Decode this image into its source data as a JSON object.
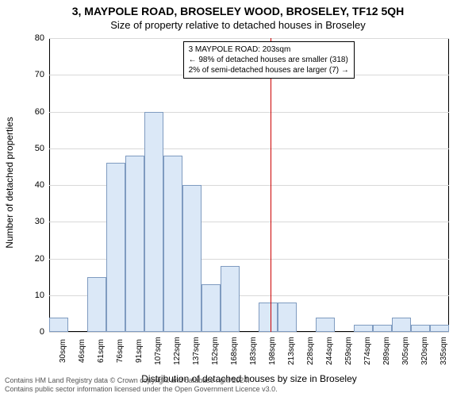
{
  "header": {
    "title": "3, MAYPOLE ROAD, BROSELEY WOOD, BROSELEY, TF12 5QH",
    "subtitle": "Size of property relative to detached houses in Broseley"
  },
  "chart": {
    "type": "histogram",
    "ylabel": "Number of detached properties",
    "xlabel": "Distribution of detached houses by size in Broseley",
    "ylim": [
      0,
      80
    ],
    "ytick_step": 10,
    "grid_color": "#d9d9d9",
    "bar_fill": "#dbe8f7",
    "bar_border": "#7f9bc0",
    "background": "#ffffff",
    "label_fontsize": 12,
    "tick_fontsize": 11,
    "x_categories": [
      "30sqm",
      "46sqm",
      "61sqm",
      "76sqm",
      "91sqm",
      "107sqm",
      "122sqm",
      "137sqm",
      "152sqm",
      "168sqm",
      "183sqm",
      "198sqm",
      "213sqm",
      "228sqm",
      "244sqm",
      "259sqm",
      "274sqm",
      "289sqm",
      "305sqm",
      "320sqm",
      "335sqm"
    ],
    "values": [
      4,
      0,
      15,
      46,
      48,
      60,
      48,
      40,
      13,
      18,
      0,
      8,
      8,
      0,
      4,
      0,
      2,
      2,
      4,
      2,
      2
    ],
    "marker": {
      "position_sqm": 203,
      "x_min_sqm": 30,
      "x_max_sqm": 343,
      "color": "#cc0000"
    },
    "annotation": {
      "line1": "3 MAYPOLE ROAD: 203sqm",
      "line2": "← 98% of detached houses are smaller (318)",
      "line3": "2% of semi-detached houses are larger (7) →"
    }
  },
  "footer": {
    "line1": "Contains HM Land Registry data © Crown copyright and database right 2024.",
    "line2": "Contains public sector information licensed under the Open Government Licence v3.0."
  }
}
